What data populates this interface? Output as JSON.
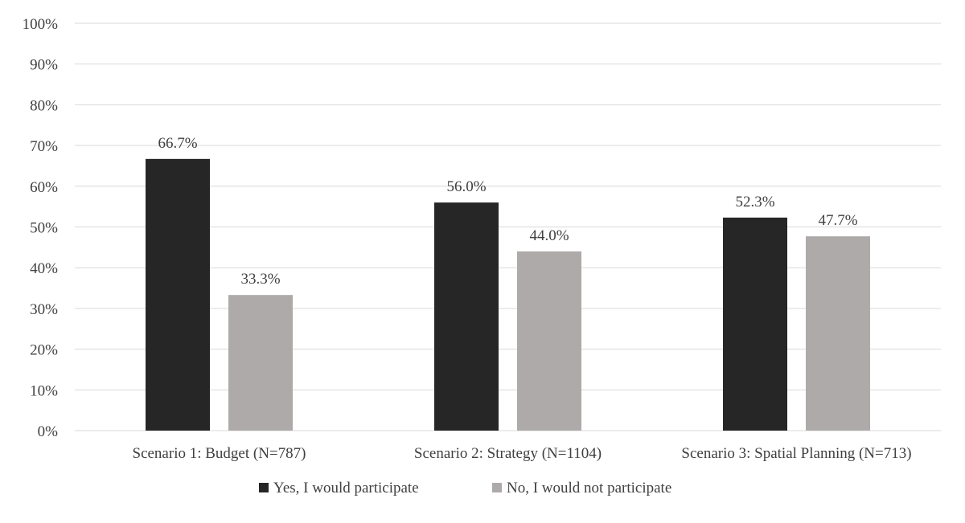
{
  "chart_data": {
    "type": "bar",
    "title": "",
    "xlabel": "",
    "ylabel": "",
    "categories": [
      "Scenario 1: Budget (N=787)",
      "Scenario 2: Strategy (N=1104)",
      "Scenario 3: Spatial Planning (N=713)"
    ],
    "series": [
      {
        "name": "Yes, I would participate",
        "color": "#262626",
        "values": [
          66.7,
          56.0,
          52.3
        ],
        "labels": [
          "66.7%",
          "56.0%",
          "52.3%"
        ]
      },
      {
        "name": "No, I would not participate",
        "color": "#aeaaaa",
        "values": [
          33.3,
          44.0,
          47.7
        ],
        "labels": [
          "33.3%",
          "44.0%",
          "47.7%"
        ]
      }
    ],
    "ylim": [
      0,
      100
    ],
    "yticks": [
      "0%",
      "10%",
      "20%",
      "30%",
      "40%",
      "50%",
      "60%",
      "70%",
      "80%",
      "90%",
      "100%"
    ],
    "grid": true,
    "legend_position": "bottom",
    "colors": {
      "grid": "#d9d9d9",
      "text": "#404040"
    }
  }
}
